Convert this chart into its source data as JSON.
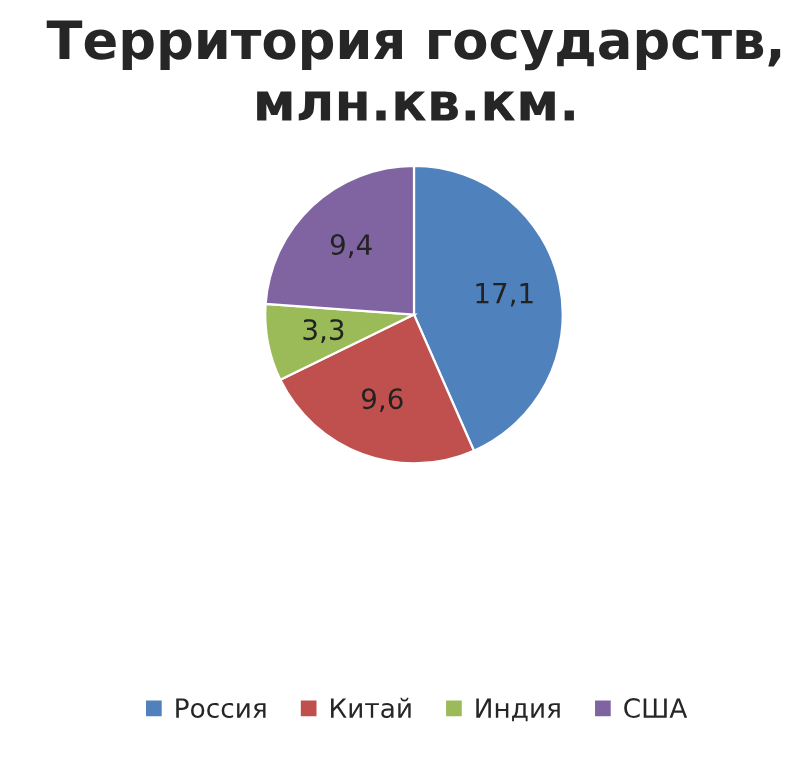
{
  "chart_data": {
    "type": "pie",
    "title": "Территория государств, млн.кв.км.",
    "categories": [
      "Россия",
      "Китай",
      "Индия",
      "США"
    ],
    "values": [
      17.1,
      9.6,
      3.3,
      9.4
    ],
    "value_labels": [
      "17,1",
      "9,6",
      "3,3",
      "9,4"
    ],
    "colors": [
      "#4f81bd",
      "#c0504d",
      "#9bbb59",
      "#8064a2"
    ],
    "legend": "bottom"
  }
}
